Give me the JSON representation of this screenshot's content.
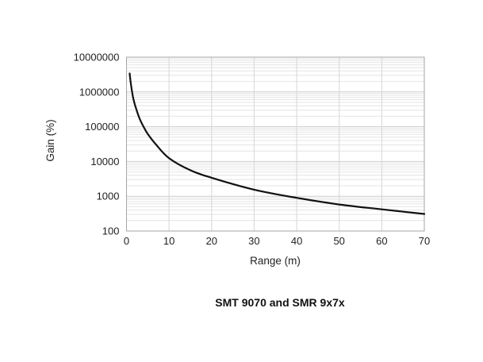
{
  "chart_data": {
    "type": "line",
    "title": "SMT 9070 and SMR 9x7x",
    "xlabel": "Range (m)",
    "ylabel": "Gain (%)",
    "x_axis": {
      "scale": "linear",
      "min": 0,
      "max": 70,
      "tick_labels": [
        "0",
        "10",
        "20",
        "30",
        "40",
        "50",
        "60",
        "70"
      ],
      "tick_values": [
        0,
        10,
        20,
        30,
        40,
        50,
        60,
        70
      ]
    },
    "y_axis": {
      "scale": "log",
      "min": 100,
      "max": 10000000,
      "tick_labels": [
        "100",
        "1000",
        "10000",
        "100000",
        "1000000",
        "10000000"
      ],
      "tick_values": [
        100,
        1000,
        10000,
        100000,
        1000000,
        10000000
      ]
    },
    "grid": {
      "horizontal_major": true,
      "horizontal_log_minor": true,
      "vertical_major": true,
      "plot_border": true
    },
    "legend": "none",
    "series": [
      {
        "name": "gain-vs-range-curve",
        "color": "#111111",
        "x": [
          0.75,
          1,
          1.5,
          2,
          3,
          4,
          5,
          7,
          10,
          15,
          20,
          30,
          40,
          50,
          60,
          70
        ],
        "y": [
          3400000,
          1800000,
          750000,
          420000,
          180000,
          100000,
          62000,
          30000,
          12500,
          5600,
          3400,
          1550,
          900,
          580,
          420,
          310
        ]
      }
    ]
  },
  "colors": {
    "background": "#ffffff",
    "curve": "#111111",
    "grid_minor": "#e4e4e4",
    "grid_major": "#cdcdcd",
    "grid_vertical": "#d6d6d6",
    "plot_border": "#a6a6a6",
    "text": "#1f1f1f"
  }
}
